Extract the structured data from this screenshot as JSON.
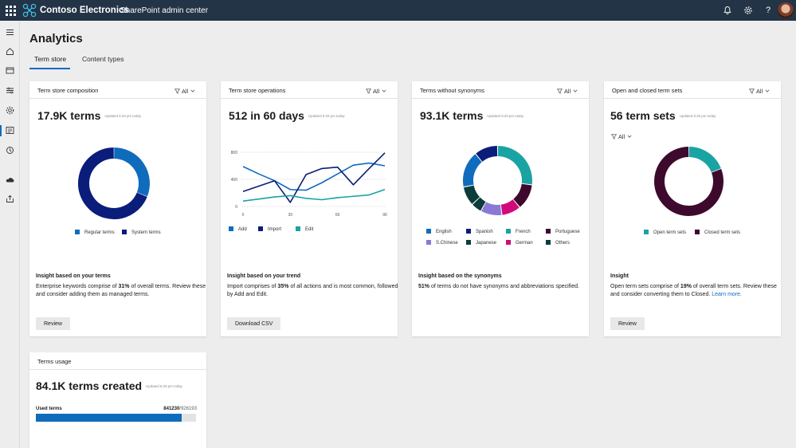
{
  "topbar": {
    "brand": "Contoso Electronics",
    "app": "SharePoint admin center",
    "icons": [
      "waffle-icon",
      "bell-icon",
      "gear-icon",
      "help-icon",
      "avatar"
    ]
  },
  "page": {
    "title": "Analytics",
    "tabs": [
      {
        "label": "Term store",
        "active": true
      },
      {
        "label": "Content types",
        "active": false
      }
    ]
  },
  "colors": {
    "accent": "#0f6cbd",
    "navy": "#0a1d7a",
    "teal": "#1aa3a3",
    "plum": "#3d0a2e"
  },
  "cards": {
    "composition": {
      "title": "Term store composition",
      "filter": "All",
      "big": "17.9K terms",
      "updated": "Updated 6:20 pm today",
      "legend": [
        "Regular terms",
        "System terms"
      ],
      "insight_title": "Insight based on your terms",
      "insight_pre": "Enterprise keywords comprise of ",
      "insight_bold": "31%",
      "insight_post": " of overall terms. Review these and consider adding them as managed terms.",
      "button": "Review"
    },
    "operations": {
      "title": "Term store operations",
      "filter": "All",
      "big": "512 in 60 days",
      "updated": "Updated 6:20 pm today",
      "legend": [
        "Add",
        "Import",
        "Edit"
      ],
      "insight_title": "Insight based on your trend",
      "insight_pre": "Import comprises of ",
      "insight_bold": "35%",
      "insight_post": " of all actions and is most common, followed by Add and Edit.",
      "button": "Download CSV"
    },
    "synonyms": {
      "title": "Terms without synonyms",
      "filter": "All",
      "big": "93.1K terms",
      "updated": "Updated 6:20 pm today",
      "legend": [
        "English",
        "Spanish",
        "French",
        "Portuguese",
        "S.Chinese",
        "Japanese",
        "German",
        "Others"
      ],
      "insight_title": "Insight based on the synonyms",
      "insight_pre": "",
      "insight_bold": "51%",
      "insight_post": " of terms do not have synonyms and abbreviations specified."
    },
    "termsets": {
      "title": "Open and closed term sets",
      "filter": "All",
      "filter2": "All",
      "big": "56 term sets",
      "updated": "Updated 6:20 pm today",
      "legend": [
        "Open term sets",
        "Closed term sets"
      ],
      "insight_title": "Insight",
      "insight_pre": "Open term sets comprise of ",
      "insight_bold": "19%",
      "insight_post": " of overall term sets. Review these and consider converting them to Closed. ",
      "insight_link": "Learn more.",
      "button": "Review"
    },
    "usage": {
      "title": "Terms usage",
      "big": "84.1K terms created",
      "updated": "Updated 6:20 pm today",
      "label": "Used terms",
      "used": "841230",
      "total": "/926193",
      "fraction": 0.908
    }
  },
  "chart_data": [
    {
      "type": "pie",
      "title": "Term store composition",
      "categories": [
        "Regular terms",
        "System terms"
      ],
      "values": [
        31,
        69
      ],
      "colors": [
        "#0f6cbd",
        "#0a1d7a"
      ]
    },
    {
      "type": "line",
      "title": "Term store operations",
      "x": [
        0,
        10,
        20,
        30,
        40,
        50,
        60,
        70,
        80,
        90
      ],
      "ylim": [
        0,
        800
      ],
      "xticks": [
        0,
        30,
        60,
        90
      ],
      "yticks": [
        0,
        400,
        800
      ],
      "series": [
        {
          "name": "Add",
          "color": "#0f6cbd",
          "values": [
            590,
            480,
            380,
            250,
            240,
            350,
            480,
            610,
            640,
            600
          ]
        },
        {
          "name": "Import",
          "color": "#0a1d7a",
          "values": [
            220,
            300,
            380,
            60,
            470,
            560,
            580,
            320,
            560,
            790
          ]
        },
        {
          "name": "Edit",
          "color": "#1aa3a3",
          "values": [
            80,
            110,
            140,
            160,
            120,
            100,
            130,
            150,
            170,
            250
          ]
        }
      ]
    },
    {
      "type": "pie",
      "title": "Terms without synonyms",
      "categories": [
        "French",
        "Portuguese",
        "German",
        "S.Chinese",
        "Others",
        "Japanese",
        "English",
        "Spanish"
      ],
      "values": [
        27,
        12,
        9,
        10,
        5,
        9,
        17,
        11
      ],
      "colors": [
        "#1aa3a3",
        "#3d0a2e",
        "#d10a7a",
        "#8a7ad6",
        "#0b3d3a",
        "#0b3d3a",
        "#0f6cbd",
        "#0a1d7a"
      ]
    },
    {
      "type": "pie",
      "title": "Open and closed term sets",
      "categories": [
        "Open term sets",
        "Closed term sets"
      ],
      "values": [
        19,
        81
      ],
      "colors": [
        "#1aa3a3",
        "#3d0a2e"
      ]
    }
  ]
}
